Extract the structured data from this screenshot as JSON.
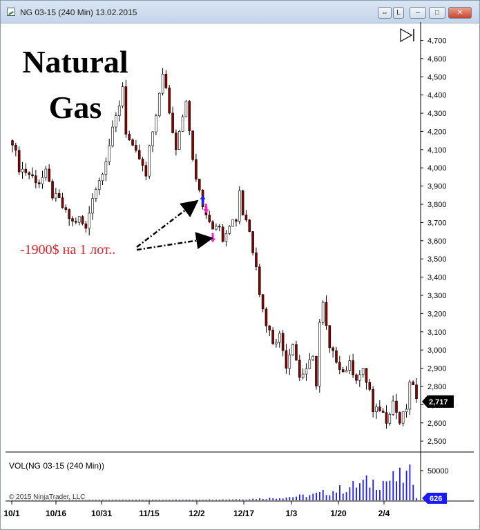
{
  "window": {
    "title": "NG 03-15 (240 Min)  13.02.2015",
    "buttons": {
      "link": "L"
    }
  },
  "annotations": {
    "title_line1": "Natural",
    "title_line2": "Gas",
    "loss_text": "-1900$ на 1 лот.."
  },
  "volume_panel": {
    "label": "VOL(NG 03-15 (240 Min))",
    "scale_label": "50000",
    "current_value": "626"
  },
  "copyright": "© 2015 NinjaTrader, LLC",
  "current_price": "2,717",
  "colors": {
    "up": "#ffffff",
    "down": "#8b0000",
    "wick": "#000000",
    "volume": "#1a1aff",
    "arrow_buy": "#1a1aff",
    "arrow_sell": "#ff22cc",
    "loss_text": "#e0242a"
  },
  "chart_data": {
    "type": "candlestick",
    "title": "",
    "y_ticks": [
      "4,700",
      "4,600",
      "4,500",
      "4,400",
      "4,300",
      "4,200",
      "4,100",
      "4,000",
      "3,900",
      "3,800",
      "3,700",
      "3,600",
      "3,500",
      "3,400",
      "3,300",
      "3,200",
      "3,100",
      "3,000",
      "2,900",
      "2,800",
      "2,700",
      "2,600",
      "2,500"
    ],
    "ylim": [
      2.44,
      4.77
    ],
    "x_ticks": [
      "10/1",
      "10/16",
      "10/31",
      "11/15",
      "12/2",
      "12/17",
      "1/3",
      "1/20",
      "2/4"
    ],
    "close_path": [
      [
        0,
        4.15
      ],
      [
        2,
        4.0
      ],
      [
        4,
        3.98
      ],
      [
        6,
        3.95
      ],
      [
        8,
        3.92
      ],
      [
        10,
        3.97
      ],
      [
        12,
        3.85
      ],
      [
        14,
        3.82
      ],
      [
        16,
        3.75
      ],
      [
        18,
        3.7
      ],
      [
        20,
        3.72
      ],
      [
        22,
        3.66
      ],
      [
        24,
        3.85
      ],
      [
        26,
        3.93
      ],
      [
        28,
        4.05
      ],
      [
        30,
        4.2
      ],
      [
        32,
        4.35
      ],
      [
        33,
        4.45
      ],
      [
        34,
        4.2
      ],
      [
        36,
        4.1
      ],
      [
        38,
        4.05
      ],
      [
        40,
        3.95
      ],
      [
        41,
        4.1
      ],
      [
        43,
        4.3
      ],
      [
        45,
        4.5
      ],
      [
        46,
        4.45
      ],
      [
        47,
        4.3
      ],
      [
        49,
        4.12
      ],
      [
        51,
        4.3
      ],
      [
        52,
        4.35
      ],
      [
        53,
        4.2
      ],
      [
        54,
        4.05
      ],
      [
        55,
        3.92
      ],
      [
        56,
        3.88
      ],
      [
        57,
        3.8
      ],
      [
        58,
        3.75
      ],
      [
        59,
        3.72
      ],
      [
        60,
        3.68
      ],
      [
        61,
        3.7
      ],
      [
        63,
        3.62
      ],
      [
        65,
        3.7
      ],
      [
        67,
        3.72
      ],
      [
        68,
        3.88
      ],
      [
        69,
        3.75
      ],
      [
        70,
        3.72
      ],
      [
        71,
        3.65
      ],
      [
        72,
        3.55
      ],
      [
        73,
        3.48
      ],
      [
        74,
        3.32
      ],
      [
        75,
        3.22
      ],
      [
        76,
        3.15
      ],
      [
        78,
        3.05
      ],
      [
        80,
        3.08
      ],
      [
        82,
        2.92
      ],
      [
        84,
        3.05
      ],
      [
        86,
        2.85
      ],
      [
        88,
        2.9
      ],
      [
        90,
        2.95
      ],
      [
        91,
        2.82
      ],
      [
        92,
        3.15
      ],
      [
        93,
        3.25
      ],
      [
        94,
        3.12
      ],
      [
        95,
        3.0
      ],
      [
        97,
        2.95
      ],
      [
        99,
        2.88
      ],
      [
        101,
        2.92
      ],
      [
        103,
        2.85
      ],
      [
        105,
        2.88
      ],
      [
        107,
        2.78
      ],
      [
        108,
        2.65
      ],
      [
        110,
        2.68
      ],
      [
        112,
        2.62
      ],
      [
        114,
        2.72
      ],
      [
        116,
        2.6
      ],
      [
        118,
        2.68
      ],
      [
        119,
        2.8
      ],
      [
        120,
        2.82
      ],
      [
        121,
        2.72
      ]
    ],
    "volume_path": [
      [
        0,
        0
      ],
      [
        60,
        0.01
      ],
      [
        70,
        0.02
      ],
      [
        80,
        0.05
      ],
      [
        90,
        0.12
      ],
      [
        95,
        0.2
      ],
      [
        100,
        0.28
      ],
      [
        105,
        0.4
      ],
      [
        110,
        0.45
      ],
      [
        115,
        0.5
      ],
      [
        120,
        0.6
      ],
      [
        121,
        0.08
      ]
    ],
    "volume_ylim": [
      0,
      75000
    ],
    "signals": [
      {
        "type": "buy",
        "bar": 57,
        "price": 3.82
      },
      {
        "type": "sell",
        "bar": 58,
        "price": 3.78
      },
      {
        "type": "sell",
        "bar": 60,
        "price": 3.62
      }
    ],
    "grid": false
  }
}
